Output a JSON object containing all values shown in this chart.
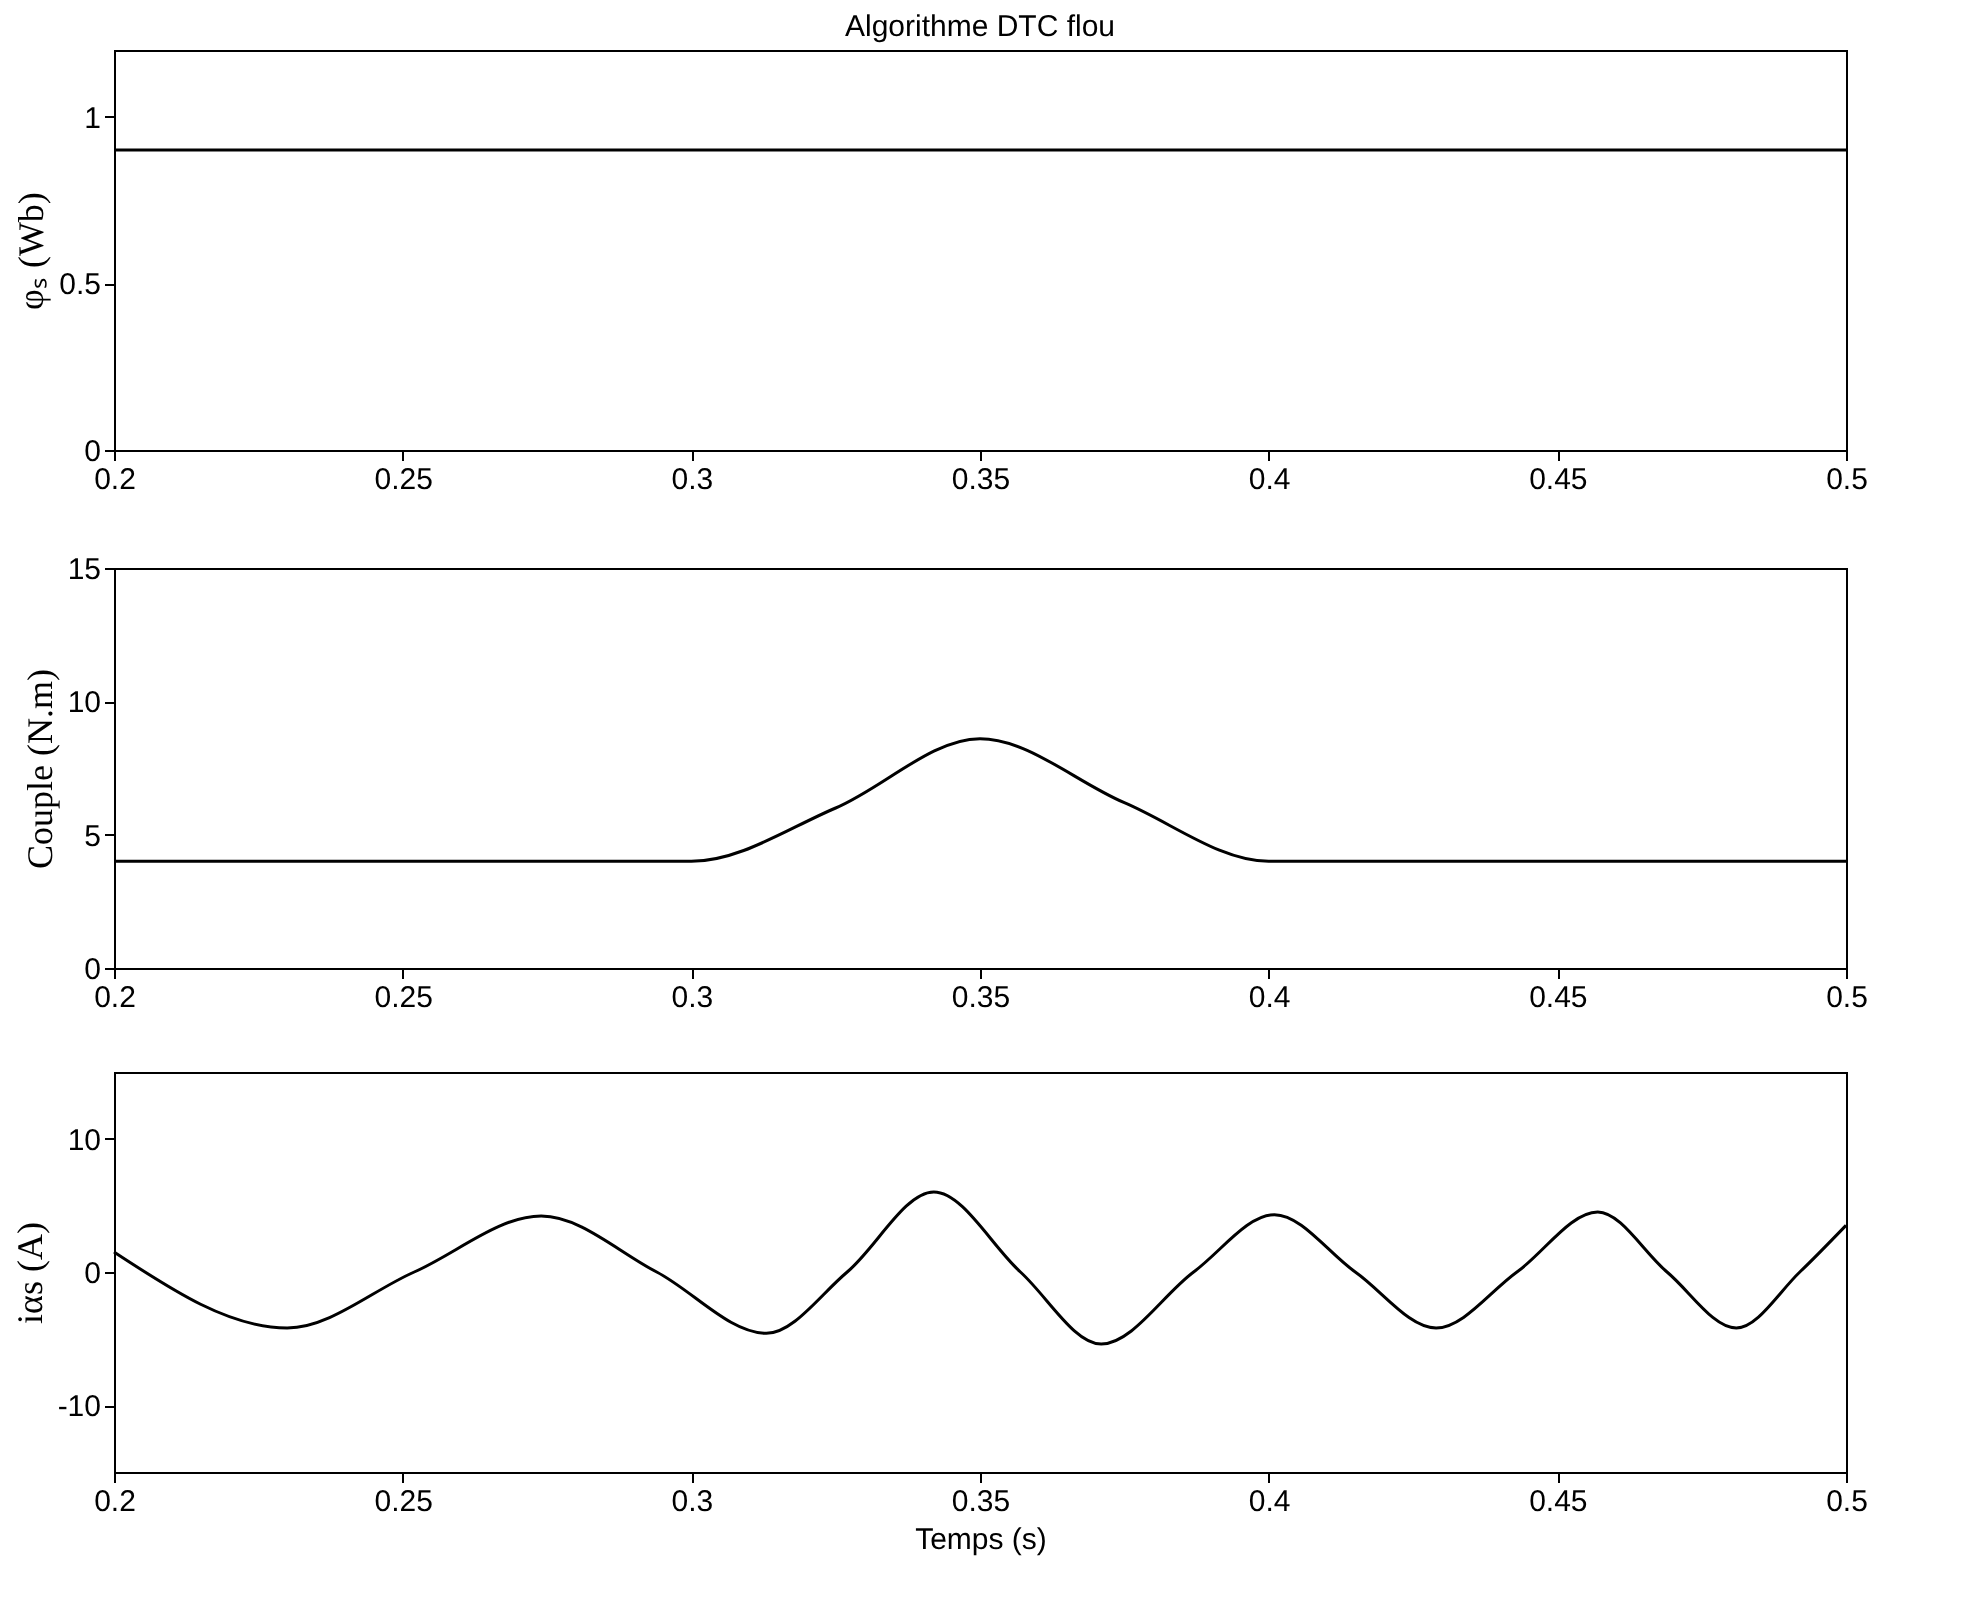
{
  "chart_data": [
    {
      "type": "line",
      "title": "Algorithme DTC flou",
      "ylabel": "φₛ (Wb)",
      "xlim": [
        0.2,
        0.5
      ],
      "xticks": [
        0.2,
        0.25,
        0.3,
        0.35,
        0.4,
        0.45,
        0.5
      ],
      "ylim": [
        0,
        1.2
      ],
      "yticks": [
        0,
        0.5,
        1
      ],
      "grid": false,
      "series": [
        {
          "color": "#000000",
          "x": [
            0.2,
            0.3,
            0.4,
            0.5
          ],
          "values": [
            0.9,
            0.9,
            0.9,
            0.9
          ]
        }
      ]
    },
    {
      "type": "line",
      "ylabel": "Couple (N.m)",
      "xlim": [
        0.2,
        0.5
      ],
      "xticks": [
        0.2,
        0.25,
        0.3,
        0.35,
        0.4,
        0.45,
        0.5
      ],
      "ylim": [
        0,
        15
      ],
      "yticks": [
        0,
        5,
        10,
        15
      ],
      "grid": false,
      "series": [
        {
          "color": "#000000",
          "x": [
            0.2,
            0.25,
            0.3,
            0.325,
            0.35,
            0.375,
            0.4,
            0.45,
            0.5
          ],
          "values": [
            4,
            4,
            4,
            6,
            8.6,
            6.2,
            4,
            4,
            4
          ]
        }
      ]
    },
    {
      "type": "line",
      "xlabel": "Temps (s)",
      "ylabel": "iαs (A)",
      "xlim": [
        0.2,
        0.5
      ],
      "xticks": [
        0.2,
        0.25,
        0.3,
        0.35,
        0.4,
        0.45,
        0.5
      ],
      "ylim": [
        -15,
        15
      ],
      "yticks": [
        -10,
        0,
        10
      ],
      "grid": false,
      "series": [
        {
          "color": "#000000",
          "x": [
            0.2,
            0.23,
            0.252,
            0.274,
            0.294,
            0.313,
            0.327,
            0.342,
            0.357,
            0.371,
            0.387,
            0.401,
            0.415,
            0.429,
            0.443,
            0.457,
            0.469,
            0.481,
            0.492,
            0.5
          ],
          "values": [
            1.5,
            -4.2,
            0,
            4.2,
            0,
            -4.6,
            0,
            6,
            0,
            -5.4,
            0,
            4.3,
            0,
            -4.2,
            0,
            4.5,
            0,
            -4.2,
            0,
            3.5
          ]
        }
      ]
    }
  ]
}
